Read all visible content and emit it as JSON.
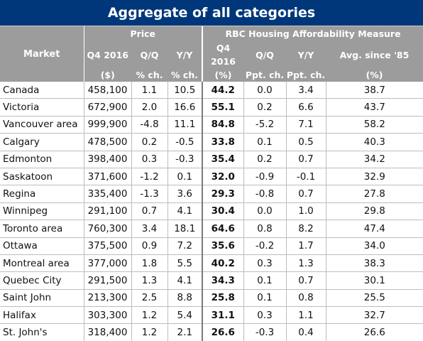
{
  "title": "Aggregate of all categories",
  "headers": {
    "market": "Market",
    "price_group": "Price",
    "afford_group": "RBC Housing Affordability Measure",
    "price_q4_line1": "Q4 2016",
    "price_q4_line2": "($)",
    "price_qq_line1": "Q/Q",
    "price_qq_line2": "% ch.",
    "price_yy_line1": "Y/Y",
    "price_yy_line2": "% ch.",
    "afford_q4_line1": "Q4 2016",
    "afford_q4_line2": "(%)",
    "afford_qq_line1": "Q/Q",
    "afford_qq_line2": "Ppt. ch.",
    "afford_yy_line1": "Y/Y",
    "afford_yy_line2": "Ppt. ch.",
    "afford_avg_line1": "Avg. since '85",
    "afford_avg_line2": "(%)"
  },
  "rows": [
    {
      "market": "Canada",
      "price": "458,100",
      "price_qq": "1.1",
      "price_yy": "10.5",
      "afford": "44.2",
      "afford_qq": "0.0",
      "afford_yy": "3.4",
      "avg": "38.7"
    },
    {
      "market": "Victoria",
      "price": "672,900",
      "price_qq": "2.0",
      "price_yy": "16.6",
      "afford": "55.1",
      "afford_qq": "0.2",
      "afford_yy": "6.6",
      "avg": "43.7"
    },
    {
      "market": "Vancouver area",
      "price": "999,900",
      "price_qq": "-4.8",
      "price_yy": "11.1",
      "afford": "84.8",
      "afford_qq": "-5.2",
      "afford_yy": "7.1",
      "avg": "58.2"
    },
    {
      "market": "Calgary",
      "price": "478,500",
      "price_qq": "0.2",
      "price_yy": "-0.5",
      "afford": "33.8",
      "afford_qq": "0.1",
      "afford_yy": "0.5",
      "avg": "40.3"
    },
    {
      "market": "Edmonton",
      "price": "398,400",
      "price_qq": "0.3",
      "price_yy": "-0.3",
      "afford": "35.4",
      "afford_qq": "0.2",
      "afford_yy": "0.7",
      "avg": "34.2"
    },
    {
      "market": "Saskatoon",
      "price": "371,600",
      "price_qq": "-1.2",
      "price_yy": "0.1",
      "afford": "32.0",
      "afford_qq": "-0.9",
      "afford_yy": "-0.1",
      "avg": "32.9"
    },
    {
      "market": "Regina",
      "price": "335,400",
      "price_qq": "-1.3",
      "price_yy": "3.6",
      "afford": "29.3",
      "afford_qq": "-0.8",
      "afford_yy": "0.7",
      "avg": "27.8"
    },
    {
      "market": "Winnipeg",
      "price": "291,100",
      "price_qq": "0.7",
      "price_yy": "4.1",
      "afford": "30.4",
      "afford_qq": "0.0",
      "afford_yy": "1.0",
      "avg": "29.8"
    },
    {
      "market": "Toronto area",
      "price": "760,300",
      "price_qq": "3.4",
      "price_yy": "18.1",
      "afford": "64.6",
      "afford_qq": "0.8",
      "afford_yy": "8.2",
      "avg": "47.4"
    },
    {
      "market": "Ottawa",
      "price": "375,500",
      "price_qq": "0.9",
      "price_yy": "7.2",
      "afford": "35.6",
      "afford_qq": "-0.2",
      "afford_yy": "1.7",
      "avg": "34.0"
    },
    {
      "market": "Montreal area",
      "price": "377,000",
      "price_qq": "1.8",
      "price_yy": "5.5",
      "afford": "40.2",
      "afford_qq": "0.3",
      "afford_yy": "1.3",
      "avg": "38.3"
    },
    {
      "market": "Quebec City",
      "price": "291,500",
      "price_qq": "1.3",
      "price_yy": "4.1",
      "afford": "34.3",
      "afford_qq": "0.1",
      "afford_yy": "0.7",
      "avg": "30.1"
    },
    {
      "market": "Saint John",
      "price": "213,300",
      "price_qq": "2.5",
      "price_yy": "8.8",
      "afford": "25.8",
      "afford_qq": "0.1",
      "afford_yy": "0.8",
      "avg": "25.5"
    },
    {
      "market": "Halifax",
      "price": "303,300",
      "price_qq": "1.2",
      "price_yy": "5.4",
      "afford": "31.1",
      "afford_qq": "0.3",
      "afford_yy": "1.1",
      "avg": "32.7"
    },
    {
      "market": "St. John's",
      "price": "318,400",
      "price_qq": "1.2",
      "price_yy": "2.1",
      "afford": "26.6",
      "afford_qq": "-0.3",
      "afford_yy": "0.4",
      "avg": "26.6"
    }
  ],
  "colors": {
    "title_bg": "#00377a",
    "header_bg": "#9c9c9c",
    "header_text": "#ffffff",
    "grid": "#bdbdbd"
  }
}
